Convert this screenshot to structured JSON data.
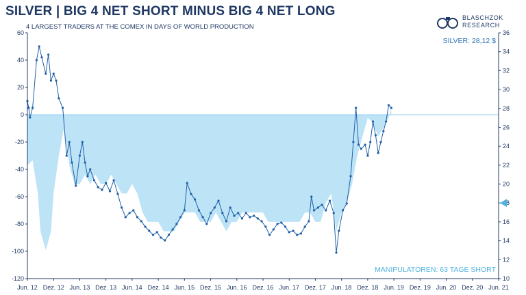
{
  "header": {
    "title": "SILVER | BIG 4 NET SHORT MINUS BIG 4 NET LONG",
    "subtitle": "4 LARGEST TRADERS AT THE COMEX IN DAYS OF WORLD PRODUCTION"
  },
  "logo": {
    "line1": "BLASCHZOK",
    "line2": "RESEARCH"
  },
  "colors": {
    "navy": "#1f3864",
    "line": "#1f5fa6",
    "area": "#bde3f7",
    "marker": "#4fb3df"
  },
  "chart_data": {
    "type": "line",
    "title": "SILVER | BIG 4 NET SHORT MINUS BIG 4 NET LONG",
    "subtitle": "4 LARGEST TRADERS AT THE COMEX IN DAYS OF WORLD PRODUCTION",
    "x_labels": [
      "Jun. 12",
      "Dez. 12",
      "Jun. 13",
      "Dez. 13",
      "Jun. 14",
      "Dez. 14",
      "Jun. 15",
      "Dez. 15",
      "Jun. 16",
      "Dez. 16",
      "Jun. 17",
      "Dez. 17",
      "Jun. 18",
      "Dez. 18",
      "Jun. 19",
      "Dez. 19",
      "Jun. 20",
      "Dez. 20",
      "Jun. 21"
    ],
    "y_left": {
      "ticks": [
        60,
        40,
        20,
        0,
        -20,
        -40,
        -60,
        -80,
        -100,
        -120
      ],
      "ylim": [
        -120,
        60
      ]
    },
    "y_right": {
      "ticks": [
        36,
        34,
        32,
        30,
        28,
        26,
        24,
        22,
        20,
        18,
        16,
        14,
        12,
        10
      ],
      "ylim": [
        10,
        36
      ]
    },
    "grid": false,
    "series": [
      {
        "axis": "left",
        "style": "line-markers",
        "points": [
          [
            0,
            10
          ],
          [
            0.05,
            5
          ],
          [
            0.1,
            -2
          ],
          [
            0.2,
            5
          ],
          [
            0.35,
            40
          ],
          [
            0.45,
            50
          ],
          [
            0.55,
            42
          ],
          [
            0.7,
            30
          ],
          [
            0.8,
            44
          ],
          [
            0.9,
            25
          ],
          [
            1.0,
            30
          ],
          [
            1.1,
            25
          ],
          [
            1.2,
            12
          ],
          [
            1.35,
            5
          ],
          [
            1.5,
            -30
          ],
          [
            1.6,
            -20
          ],
          [
            1.7,
            -35
          ],
          [
            1.85,
            -52
          ],
          [
            2.0,
            -30
          ],
          [
            2.1,
            -20
          ],
          [
            2.2,
            -35
          ],
          [
            2.3,
            -45
          ],
          [
            2.4,
            -40
          ],
          [
            2.55,
            -48
          ],
          [
            2.7,
            -53
          ],
          [
            2.85,
            -55
          ],
          [
            3.0,
            -50
          ],
          [
            3.15,
            -56
          ],
          [
            3.3,
            -48
          ],
          [
            3.45,
            -58
          ],
          [
            3.6,
            -68
          ],
          [
            3.75,
            -75
          ],
          [
            3.9,
            -72
          ],
          [
            4.05,
            -70
          ],
          [
            4.2,
            -75
          ],
          [
            4.35,
            -78
          ],
          [
            4.5,
            -82
          ],
          [
            4.65,
            -85
          ],
          [
            4.8,
            -88
          ],
          [
            4.95,
            -86
          ],
          [
            5.1,
            -90
          ],
          [
            5.25,
            -92
          ],
          [
            5.4,
            -88
          ],
          [
            5.55,
            -84
          ],
          [
            5.7,
            -80
          ],
          [
            5.85,
            -75
          ],
          [
            6.0,
            -70
          ],
          [
            6.1,
            -50
          ],
          [
            6.25,
            -58
          ],
          [
            6.4,
            -62
          ],
          [
            6.55,
            -70
          ],
          [
            6.7,
            -75
          ],
          [
            6.85,
            -80
          ],
          [
            7.0,
            -72
          ],
          [
            7.15,
            -68
          ],
          [
            7.3,
            -63
          ],
          [
            7.45,
            -72
          ],
          [
            7.6,
            -78
          ],
          [
            7.75,
            -68
          ],
          [
            7.9,
            -74
          ],
          [
            8.05,
            -72
          ],
          [
            8.2,
            -76
          ],
          [
            8.35,
            -72
          ],
          [
            8.5,
            -75
          ],
          [
            8.65,
            -74
          ],
          [
            8.8,
            -76
          ],
          [
            8.95,
            -78
          ],
          [
            9.1,
            -82
          ],
          [
            9.25,
            -88
          ],
          [
            9.4,
            -84
          ],
          [
            9.55,
            -80
          ],
          [
            9.7,
            -79
          ],
          [
            9.85,
            -82
          ],
          [
            10.0,
            -86
          ],
          [
            10.15,
            -85
          ],
          [
            10.3,
            -88
          ],
          [
            10.45,
            -87
          ],
          [
            10.6,
            -82
          ],
          [
            10.75,
            -78
          ],
          [
            10.85,
            -60
          ],
          [
            10.95,
            -70
          ],
          [
            11.1,
            -68
          ],
          [
            11.25,
            -66
          ],
          [
            11.4,
            -70
          ],
          [
            11.55,
            -63
          ],
          [
            11.7,
            -72
          ],
          [
            11.8,
            -101
          ],
          [
            11.9,
            -85
          ],
          [
            12.05,
            -70
          ],
          [
            12.2,
            -65
          ],
          [
            12.35,
            -45
          ],
          [
            12.45,
            -20
          ],
          [
            12.55,
            5
          ],
          [
            12.65,
            -22
          ],
          [
            12.75,
            -25
          ],
          [
            12.9,
            -22
          ],
          [
            13.0,
            -30
          ],
          [
            13.1,
            -20
          ],
          [
            13.2,
            -5
          ],
          [
            13.3,
            -15
          ],
          [
            13.4,
            -28
          ],
          [
            13.5,
            -20
          ],
          [
            13.6,
            -12
          ],
          [
            13.7,
            -5
          ],
          [
            13.8,
            7
          ],
          [
            13.9,
            5
          ]
        ]
      },
      {
        "axis": "right",
        "style": "area",
        "name": "SILVER: 28,12 $",
        "points": [
          [
            0,
            22
          ],
          [
            0.2,
            22.5
          ],
          [
            0.4,
            19
          ],
          [
            0.5,
            15
          ],
          [
            0.7,
            13
          ],
          [
            0.9,
            15
          ],
          [
            1.0,
            19
          ],
          [
            1.2,
            23
          ],
          [
            1.4,
            26
          ],
          [
            1.6,
            22
          ],
          [
            1.8,
            20
          ],
          [
            2.0,
            20
          ],
          [
            2.2,
            21
          ],
          [
            2.4,
            20
          ],
          [
            2.6,
            21
          ],
          [
            2.8,
            20
          ],
          [
            3.0,
            20
          ],
          [
            3.2,
            21
          ],
          [
            3.4,
            20
          ],
          [
            3.6,
            19
          ],
          [
            3.8,
            19
          ],
          [
            4.0,
            20
          ],
          [
            4.2,
            19
          ],
          [
            4.4,
            17
          ],
          [
            4.6,
            16
          ],
          [
            4.8,
            16
          ],
          [
            5.0,
            16
          ],
          [
            5.2,
            15
          ],
          [
            5.4,
            15
          ],
          [
            5.6,
            15
          ],
          [
            5.8,
            16
          ],
          [
            6.0,
            17
          ],
          [
            6.2,
            17
          ],
          [
            6.4,
            17
          ],
          [
            6.6,
            16
          ],
          [
            6.8,
            16
          ],
          [
            7.0,
            16
          ],
          [
            7.2,
            17
          ],
          [
            7.4,
            16
          ],
          [
            7.6,
            15
          ],
          [
            7.8,
            16
          ],
          [
            8.0,
            16
          ],
          [
            8.2,
            17
          ],
          [
            8.4,
            17
          ],
          [
            8.6,
            17
          ],
          [
            8.8,
            17
          ],
          [
            9.0,
            17
          ],
          [
            9.2,
            16
          ],
          [
            9.4,
            16
          ],
          [
            9.6,
            16
          ],
          [
            9.8,
            16
          ],
          [
            10.0,
            16
          ],
          [
            10.2,
            16
          ],
          [
            10.4,
            16
          ],
          [
            10.6,
            17
          ],
          [
            10.8,
            17
          ],
          [
            11.0,
            16
          ],
          [
            11.2,
            16
          ],
          [
            11.4,
            18
          ],
          [
            11.6,
            19
          ],
          [
            11.8,
            15
          ],
          [
            12.0,
            17
          ],
          [
            12.2,
            18
          ],
          [
            12.4,
            20
          ],
          [
            12.6,
            23
          ],
          [
            12.8,
            25
          ],
          [
            13.0,
            27
          ],
          [
            13.2,
            26.5
          ],
          [
            13.4,
            25
          ],
          [
            13.6,
            26
          ],
          [
            13.8,
            27
          ],
          [
            13.9,
            28.12
          ]
        ],
        "current_value": 28.12
      }
    ]
  },
  "labels": {
    "silver": "SILVER: 28,12 $",
    "manipulators": "MANIPULATOREN: 63 TAGE SHORT"
  }
}
